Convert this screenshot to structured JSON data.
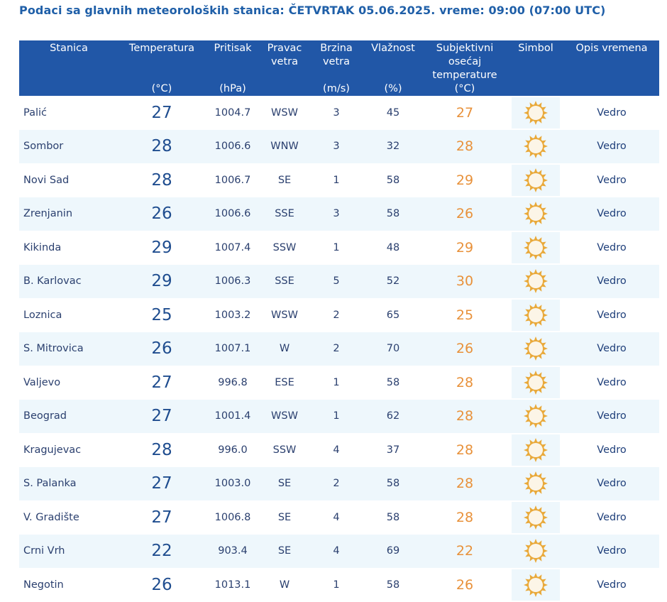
{
  "header": {
    "title": "Podaci sa glavnih meteoroloških stanica:  ČETVRTAK 05.06.2025.  vreme: 09:00 (07:00 UTC)"
  },
  "columns": [
    {
      "key": "station",
      "label": "Stanica",
      "unit": ""
    },
    {
      "key": "temp",
      "label": "Temperatura",
      "unit": "(°C)"
    },
    {
      "key": "press",
      "label": "Pritisak",
      "unit": "(hPa)"
    },
    {
      "key": "wind",
      "label": "Pravac vetra",
      "unit": ""
    },
    {
      "key": "speed",
      "label": "Brzina vetra",
      "unit": "(m/s)"
    },
    {
      "key": "hum",
      "label": "Vlažnost",
      "unit": "(%)"
    },
    {
      "key": "feel",
      "label": "Subjektivni osećaj temperature",
      "unit": "(°C)"
    },
    {
      "key": "symbol",
      "label": "Simbol",
      "unit": ""
    },
    {
      "key": "desc",
      "label": "Opis vremena",
      "unit": ""
    }
  ],
  "icons": {
    "symbol": "sun-icon"
  },
  "colors": {
    "header_bg": "#2157a7",
    "title": "#1f5fa8",
    "feel_temp": "#e8913a",
    "row_alt": "#eef7fc",
    "sun": "#e9a93a"
  },
  "rows": [
    {
      "station": "Palić",
      "temp": "27",
      "press": "1004.7",
      "wind": "WSW",
      "speed": "3",
      "hum": "45",
      "feel": "27",
      "desc": "Vedro"
    },
    {
      "station": "Sombor",
      "temp": "28",
      "press": "1006.6",
      "wind": "WNW",
      "speed": "3",
      "hum": "32",
      "feel": "28",
      "desc": "Vedro"
    },
    {
      "station": "Novi Sad",
      "temp": "28",
      "press": "1006.7",
      "wind": "SE",
      "speed": "1",
      "hum": "58",
      "feel": "29",
      "desc": "Vedro"
    },
    {
      "station": "Zrenjanin",
      "temp": "26",
      "press": "1006.6",
      "wind": "SSE",
      "speed": "3",
      "hum": "58",
      "feel": "26",
      "desc": "Vedro"
    },
    {
      "station": "Kikinda",
      "temp": "29",
      "press": "1007.4",
      "wind": "SSW",
      "speed": "1",
      "hum": "48",
      "feel": "29",
      "desc": "Vedro"
    },
    {
      "station": "B. Karlovac",
      "temp": "29",
      "press": "1006.3",
      "wind": "SSE",
      "speed": "5",
      "hum": "52",
      "feel": "30",
      "desc": "Vedro"
    },
    {
      "station": "Loznica",
      "temp": "25",
      "press": "1003.2",
      "wind": "WSW",
      "speed": "2",
      "hum": "65",
      "feel": "25",
      "desc": "Vedro"
    },
    {
      "station": "S. Mitrovica",
      "temp": "26",
      "press": "1007.1",
      "wind": "W",
      "speed": "2",
      "hum": "70",
      "feel": "26",
      "desc": "Vedro"
    },
    {
      "station": "Valjevo",
      "temp": "27",
      "press": "996.8",
      "wind": "ESE",
      "speed": "1",
      "hum": "58",
      "feel": "28",
      "desc": "Vedro"
    },
    {
      "station": "Beograd",
      "temp": "27",
      "press": "1001.4",
      "wind": "WSW",
      "speed": "1",
      "hum": "62",
      "feel": "28",
      "desc": "Vedro"
    },
    {
      "station": "Kragujevac",
      "temp": "28",
      "press": "996.0",
      "wind": "SSW",
      "speed": "4",
      "hum": "37",
      "feel": "28",
      "desc": "Vedro"
    },
    {
      "station": "S. Palanka",
      "temp": "27",
      "press": "1003.0",
      "wind": "SE",
      "speed": "2",
      "hum": "58",
      "feel": "28",
      "desc": "Vedro"
    },
    {
      "station": "V. Gradište",
      "temp": "27",
      "press": "1006.8",
      "wind": "SE",
      "speed": "4",
      "hum": "58",
      "feel": "28",
      "desc": "Vedro"
    },
    {
      "station": "Crni Vrh",
      "temp": "22",
      "press": "903.4",
      "wind": "SE",
      "speed": "4",
      "hum": "69",
      "feel": "22",
      "desc": "Vedro"
    },
    {
      "station": "Negotin",
      "temp": "26",
      "press": "1013.1",
      "wind": "W",
      "speed": "1",
      "hum": "58",
      "feel": "26",
      "desc": "Vedro"
    }
  ]
}
